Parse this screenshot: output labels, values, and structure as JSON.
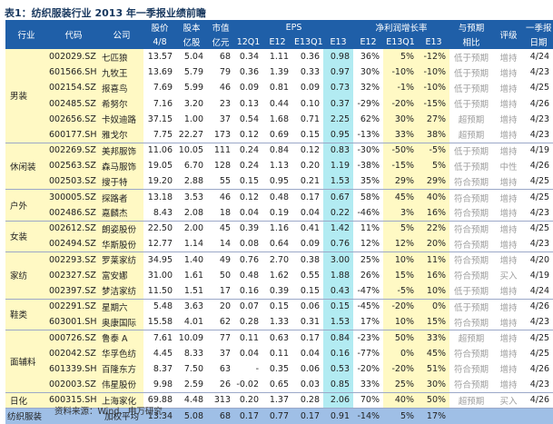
{
  "title": "表1：纺织服装行业 2013 年一季报业绩前瞻",
  "headers": {
    "row1": [
      "行业",
      "代码",
      "公司",
      "股价",
      "股本",
      "市值",
      "EPS",
      "净利润增长率",
      "与预期",
      "评级",
      "一季报"
    ],
    "row2": [
      "4/8",
      "亿股",
      "亿元",
      "12Q1",
      "E12",
      "E13Q1",
      "E13",
      "E12",
      "E13Q1",
      "E13",
      "相比",
      "日期"
    ]
  },
  "groups": [
    {
      "category": "男装",
      "rows": [
        [
          "002029.SZ",
          "七匹狼",
          "13.57",
          "5.04",
          "68",
          "0.34",
          "1.11",
          "0.36",
          "0.98",
          "36%",
          "5%",
          "-12%",
          "低于预期",
          "增持",
          "4/24"
        ],
        [
          "601566.SH",
          "九牧王",
          "13.69",
          "5.79",
          "79",
          "0.36",
          "1.39",
          "0.33",
          "0.97",
          "30%",
          "-10%",
          "-10%",
          "低于预期",
          "增持",
          "4/23"
        ],
        [
          "002154.SZ",
          "报喜鸟",
          "7.69",
          "5.99",
          "46",
          "0.09",
          "0.81",
          "0.09",
          "0.73",
          "32%",
          "-1%",
          "-10%",
          "低于预期",
          "增持",
          "4/25"
        ],
        [
          "002485.SZ",
          "希努尔",
          "7.16",
          "3.20",
          "23",
          "0.13",
          "0.44",
          "0.10",
          "0.37",
          "-29%",
          "-20%",
          "-15%",
          "低于预期",
          "增持",
          "4/26"
        ],
        [
          "002656.SZ",
          "卡奴迪路",
          "37.15",
          "1.00",
          "37",
          "0.54",
          "1.68",
          "0.71",
          "2.25",
          "62%",
          "30%",
          "27%",
          "超预期",
          "增持",
          "4/23"
        ],
        [
          "600177.SH",
          "雅戈尔",
          "7.75",
          "22.27",
          "173",
          "0.12",
          "0.69",
          "0.15",
          "0.95",
          "-13%",
          "33%",
          "38%",
          "超预期",
          "增持",
          "4/23"
        ]
      ]
    },
    {
      "category": "休闲装",
      "rows": [
        [
          "002269.SZ",
          "美邦服饰",
          "11.06",
          "10.05",
          "111",
          "0.24",
          "0.84",
          "0.12",
          "0.83",
          "-30%",
          "-50%",
          "-5%",
          "低于预期",
          "增持",
          "4/19"
        ],
        [
          "002563.SZ",
          "森马服饰",
          "19.05",
          "6.70",
          "128",
          "0.24",
          "1.13",
          "0.20",
          "1.19",
          "-38%",
          "-15%",
          "5%",
          "低于预期",
          "中性",
          "4/26"
        ],
        [
          "002503.SZ",
          "搜于特",
          "19.20",
          "2.88",
          "55",
          "0.15",
          "0.95",
          "0.21",
          "1.53",
          "35%",
          "29%",
          "29%",
          "符合预期",
          "增持",
          "4/25"
        ]
      ]
    },
    {
      "category": "户外",
      "rows": [
        [
          "300005.SZ",
          "探路者",
          "13.18",
          "3.53",
          "46",
          "0.12",
          "0.48",
          "0.17",
          "0.67",
          "58%",
          "45%",
          "40%",
          "符合预期",
          "增持",
          "4/25"
        ],
        [
          "002486.SZ",
          "嘉麟杰",
          "8.43",
          "2.08",
          "18",
          "0.04",
          "0.19",
          "0.04",
          "0.22",
          "-46%",
          "3%",
          "16%",
          "符合预期",
          "增持",
          "4/23"
        ]
      ]
    },
    {
      "category": "女装",
      "rows": [
        [
          "002612.SZ",
          "朗姿股份",
          "22.50",
          "2.00",
          "45",
          "0.39",
          "1.16",
          "0.41",
          "1.42",
          "11%",
          "5%",
          "22%",
          "符合预期",
          "增持",
          "4/25"
        ],
        [
          "002494.SZ",
          "华斯股份",
          "12.77",
          "1.14",
          "14",
          "0.08",
          "0.64",
          "0.09",
          "0.76",
          "12%",
          "12%",
          "20%",
          "符合预期",
          "增持",
          "4/23"
        ]
      ]
    },
    {
      "category": "家纺",
      "rows": [
        [
          "002293.SZ",
          "罗莱家纺",
          "34.95",
          "1.40",
          "49",
          "0.76",
          "2.70",
          "0.38",
          "3.00",
          "25%",
          "10%",
          "11%",
          "符合预期",
          "增持",
          "4/20"
        ],
        [
          "002327.SZ",
          "富安娜",
          "31.00",
          "1.61",
          "50",
          "0.48",
          "1.62",
          "0.55",
          "1.88",
          "26%",
          "15%",
          "16%",
          "符合预期",
          "买入",
          "4/19"
        ],
        [
          "002397.SZ",
          "梦洁家纺",
          "11.50",
          "1.51",
          "17",
          "0.16",
          "0.39",
          "0.15",
          "0.43",
          "-47%",
          "-5%",
          "10%",
          "低于预期",
          "增持",
          "4/24"
        ]
      ]
    },
    {
      "category": "鞋类",
      "rows": [
        [
          "002291.SZ",
          "星期六",
          "5.48",
          "3.63",
          "20",
          "0.07",
          "0.15",
          "0.06",
          "0.15",
          "-45%",
          "-20%",
          "0%",
          "低于预期",
          "增持",
          "4/26"
        ],
        [
          "603001.SH",
          "奥康国际",
          "15.58",
          "4.01",
          "62",
          "0.28",
          "1.33",
          "0.31",
          "1.53",
          "17%",
          "10%",
          "15%",
          "符合预期",
          "增持",
          "4/23"
        ]
      ]
    },
    {
      "category": "面辅料",
      "rows": [
        [
          "000726.SZ",
          "鲁泰 A",
          "7.61",
          "10.09",
          "77",
          "0.11",
          "0.63",
          "0.17",
          "0.84",
          "-23%",
          "50%",
          "33%",
          "超预期",
          "增持",
          "4/25"
        ],
        [
          "002042.SZ",
          "华孚色纺",
          "4.45",
          "8.33",
          "37",
          "0.04",
          "0.11",
          "0.04",
          "0.16",
          "-77%",
          "0%",
          "45%",
          "符合预期",
          "增持",
          "4/25"
        ],
        [
          "601339.SH",
          "百隆东方",
          "8.37",
          "7.50",
          "63",
          "-",
          "0.35",
          "0.06",
          "0.53",
          "-20%",
          "-20%",
          "51%",
          "符合预期",
          "增持",
          "4/26"
        ],
        [
          "002003.SZ",
          "伟星股份",
          "9.98",
          "2.59",
          "26",
          "-0.02",
          "0.65",
          "0.03",
          "0.85",
          "33%",
          "25%",
          "30%",
          "符合预期",
          "增持",
          "4/23"
        ]
      ]
    },
    {
      "category": "日化",
      "rows": [
        [
          "600315.SH",
          "上海家化",
          "69.88",
          "4.48",
          "313",
          "0.20",
          "1.37",
          "0.28",
          "2.06",
          "70%",
          "40%",
          "50%",
          "超预期",
          "买入",
          "4/26"
        ]
      ]
    }
  ],
  "total": [
    "纺织服装",
    "加权平均",
    "13.34",
    "5.08",
    "68",
    "0.17",
    "0.77",
    "0.17",
    "0.91",
    "-14%",
    "5%",
    "17%",
    "",
    ""
  ],
  "source": "资料来源：Wind、申万研究"
}
